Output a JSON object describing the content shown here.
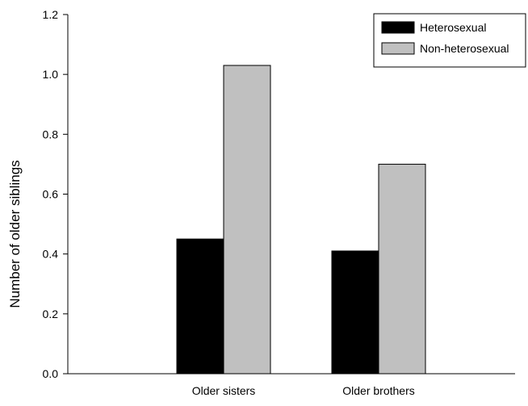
{
  "chart_data": {
    "type": "bar",
    "title": "",
    "xlabel": "",
    "ylabel": "Number of older siblings",
    "ylim": [
      0,
      1.2
    ],
    "yticks": [
      "0.0",
      "0.2",
      "0.4",
      "0.6",
      "0.8",
      "1.0",
      "1.2"
    ],
    "categories": [
      "Older sisters",
      "Older brothers"
    ],
    "series": [
      {
        "name": "Heterosexual",
        "color": "#000000",
        "values": [
          0.45,
          0.41
        ]
      },
      {
        "name": "Non-heterosexual",
        "color": "#c0c0c0",
        "values": [
          1.03,
          0.7
        ]
      }
    ],
    "grid": false,
    "legend_position": "top-right"
  }
}
